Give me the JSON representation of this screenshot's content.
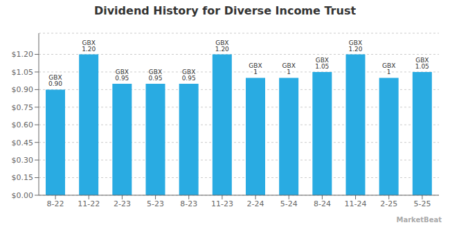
{
  "chart_data": {
    "type": "bar",
    "title": "Dividend History for Diverse Income Trust",
    "categories": [
      "8-22",
      "11-22",
      "2-23",
      "5-23",
      "8-23",
      "11-23",
      "2-24",
      "5-24",
      "8-24",
      "11-24",
      "2-25",
      "5-25"
    ],
    "values": [
      0.9,
      1.2,
      0.95,
      0.95,
      0.95,
      1.2,
      1.0,
      1.0,
      1.05,
      1.2,
      1.0,
      1.05
    ],
    "value_labels": [
      "GBX 0.90",
      "GBX 1.20",
      "GBX 0.95",
      "GBX 0.95",
      "GBX 0.95",
      "GBX 1.20",
      "GBX 1",
      "GBX 1",
      "GBX 1.05",
      "GBX 1.20",
      "GBX 1",
      "GBX 1.05"
    ],
    "data_labels": true,
    "color": "#29abe2",
    "ylim": [
      0,
      1.38
    ],
    "yticks": [
      {
        "value": 0.0,
        "label": "$0.00"
      },
      {
        "value": 0.15,
        "label": "$0.15"
      },
      {
        "value": 0.3,
        "label": "$0.30"
      },
      {
        "value": 0.45,
        "label": "$0.45"
      },
      {
        "value": 0.6,
        "label": "$0.60"
      },
      {
        "value": 0.75,
        "label": "$0.75"
      },
      {
        "value": 0.9,
        "label": "$0.90"
      },
      {
        "value": 1.05,
        "label": "$1.05"
      },
      {
        "value": 1.2,
        "label": "$1.20"
      }
    ],
    "grid": true,
    "annotations": [
      "MarketBeat"
    ]
  }
}
